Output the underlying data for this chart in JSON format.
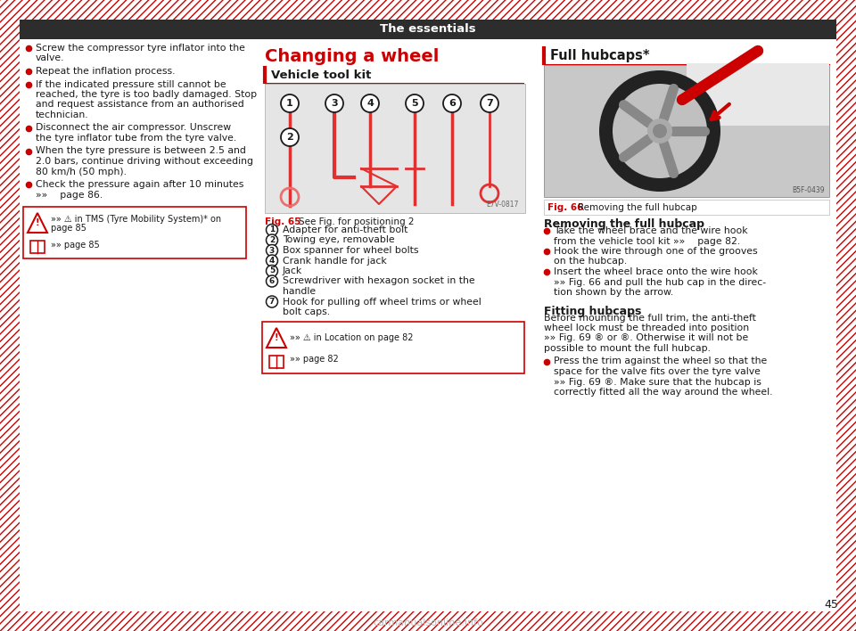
{
  "title": "The essentials",
  "title_bg": "#2d2d2d",
  "title_color": "#ffffff",
  "page_bg": "#ffffff",
  "border_color": "#cc0000",
  "page_number": "45",
  "red_color": "#cc0000",
  "dark_color": "#1a1a1a",
  "mid_gray": "#888888",
  "light_gray": "#e0e0e0",
  "left_bullets": [
    "Screw the compressor tyre inflator into the\nvalve.",
    "Repeat the inflation process.",
    "If the indicated pressure still cannot be\nreached, the tyre is too badly damaged. Stop\nand request assistance from an authorised\ntechnician.",
    "Disconnect the air compressor. Unscrew\nthe tyre inflator tube from the tyre valve.",
    "When the tyre pressure is between 2.5 and\n2.0 bars, continue driving without exceeding\n80 km/h (50 mph).",
    "Check the pressure again after 10 minutes\n»»    page 86."
  ],
  "warn1_line1": "»» ⚠ in TMS (Tyre Mobility System)* on",
  "warn1_line2": "page 85",
  "warn1_line3": "»» page 85",
  "mid_title": "Changing a wheel",
  "mid_sub": "Vehicle tool kit",
  "fig65_cap": "Fig. 65  See Fig. for positioning 2",
  "items": [
    {
      "n": "1",
      "t": "Adapter for anti-theft bolt"
    },
    {
      "n": "2",
      "t": "Towing eye, removable"
    },
    {
      "n": "3",
      "t": "Box spanner for wheel bolts"
    },
    {
      "n": "4",
      "t": "Crank handle for jack"
    },
    {
      "n": "5",
      "t": "Jack"
    },
    {
      "n": "6",
      "t": "Screwdriver with hexagon socket in the\nhandle"
    },
    {
      "n": "7",
      "t": "Hook for pulling off wheel trims or wheel\nbolt caps."
    }
  ],
  "warn2_line1": "»» ⚠ in Location on page 82",
  "warn2_line2": "»» page 82",
  "right_title": "Full hubcaps*",
  "fig66_cap_label": "Fig. 66",
  "fig66_cap_text": "  Removing the full hubcap",
  "rem_title": "Removing the full hubcap",
  "rem_bullets": [
    "Take the wheel brace and the wire hook\nfrom the vehicle tool kit »»    page 82.",
    "Hook the wire through one of the grooves\non the hubcap.",
    "Insert the wheel brace onto the wire hook\n»» Fig. 66 and pull the hub cap in the direc-\ntion shown by the arrow."
  ],
  "fit_title": "Fitting hubcaps",
  "fit_para": [
    "Before mounting the full trim, the anti-theft",
    "wheel lock must be threaded into position",
    "»» Fig. 69 ® or ®. Otherwise it will not be",
    "possible to mount the full hubcap."
  ],
  "fit_bullet": [
    "Press the trim against the wheel so that the",
    "space for the valve fits over the tyre valve",
    "»» Fig. 69 ®. Make sure that the hubcap is",
    "correctly fitted all the way around the wheel."
  ]
}
